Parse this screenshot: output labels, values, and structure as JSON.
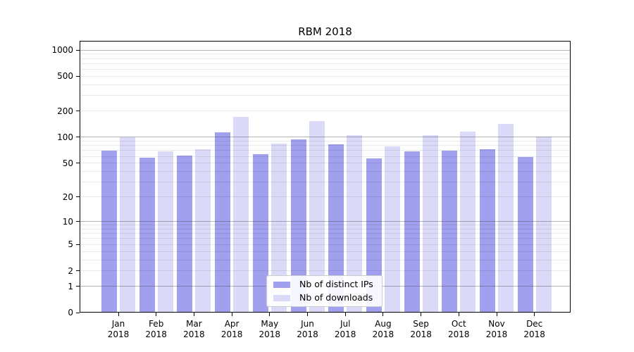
{
  "title": "RBM 2018",
  "chart_data": {
    "type": "bar",
    "title": "RBM 2018",
    "categories": [
      "Jan 2018",
      "Feb 2018",
      "Mar 2018",
      "Apr 2018",
      "May 2018",
      "Jun 2018",
      "Jul 2018",
      "Aug 2018",
      "Sep 2018",
      "Oct 2018",
      "Nov 2018",
      "Dec 2018"
    ],
    "x_tick_lines": [
      [
        "Jan",
        "2018"
      ],
      [
        "Feb",
        "2018"
      ],
      [
        "Mar",
        "2018"
      ],
      [
        "Apr",
        "2018"
      ],
      [
        "May",
        "2018"
      ],
      [
        "Jun",
        "2018"
      ],
      [
        "Jul",
        "2018"
      ],
      [
        "Aug",
        "2018"
      ],
      [
        "Sep",
        "2018"
      ],
      [
        "Oct",
        "2018"
      ],
      [
        "Nov",
        "2018"
      ],
      [
        "Dec",
        "2018"
      ]
    ],
    "series": [
      {
        "name": "Nb of distinct IPs",
        "color": "#a0a0ef",
        "values": [
          70,
          58,
          61,
          113,
          64,
          94,
          82,
          57,
          68,
          70,
          73,
          59
        ]
      },
      {
        "name": "Nb of downloads",
        "color": "#dadaf8",
        "values": [
          100,
          68,
          72,
          172,
          84,
          152,
          106,
          78,
          105,
          116,
          143,
          101
        ]
      }
    ],
    "yscale": "log1p",
    "ylim": [
      0,
      1275
    ],
    "xlabel": "",
    "ylabel": "",
    "y_tick_labels": [
      "0",
      "1",
      "2",
      "5",
      "10",
      "20",
      "50",
      "100",
      "200",
      "500",
      "1000"
    ],
    "y_tick_values": [
      0,
      1,
      2,
      5,
      10,
      20,
      50,
      100,
      200,
      500,
      1000
    ],
    "y_major_grid_values": [
      1,
      10,
      100,
      1000
    ],
    "y_minor_grid_values": [
      2,
      3,
      4,
      5,
      6,
      7,
      8,
      9,
      20,
      30,
      40,
      50,
      60,
      70,
      80,
      90,
      200,
      300,
      400,
      500,
      600,
      700,
      800,
      900
    ],
    "grid": true,
    "legend_position": "lower center",
    "legend_entries": [
      "Nb of distinct IPs",
      "Nb of downloads"
    ]
  }
}
